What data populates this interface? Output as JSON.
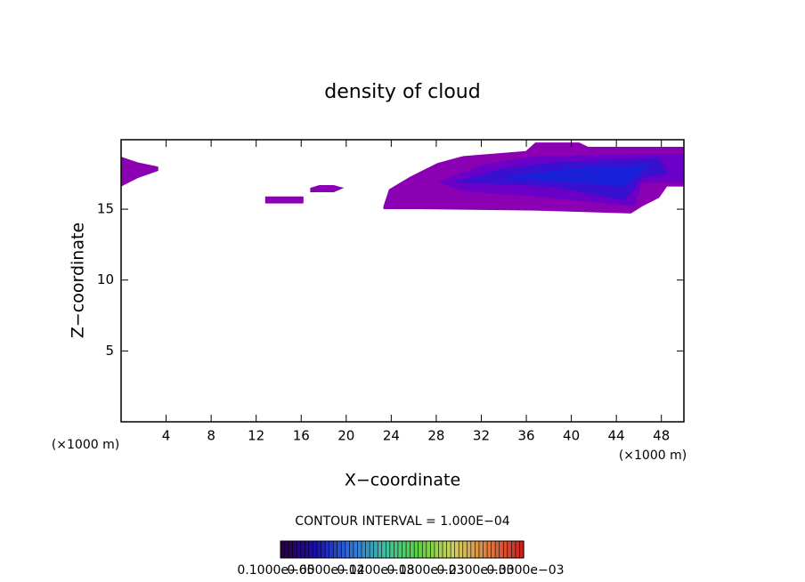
{
  "chart_data": {
    "type": "contourf",
    "title": "density of cloud",
    "x_label": "X−coordinate",
    "y_label": "Z−coordinate",
    "x_unit": "(×1000 m)",
    "y_unit": "(×1000 m)",
    "footer": "CONTOUR INTERVAL = 1.000E−04",
    "xlim": [
      0,
      50
    ],
    "ylim": [
      0,
      19.9
    ],
    "xticks": [
      4,
      8,
      12,
      16,
      20,
      24,
      28,
      32,
      36,
      40,
      44,
      48
    ],
    "yticks": [
      5,
      10,
      15
    ],
    "regions": [
      {
        "level": 1e-06,
        "color": "#8c00b4",
        "x": [
          0,
          1.5,
          3.3,
          3.3,
          1.5,
          0
        ],
        "y": [
          18.7,
          18.3,
          18.0,
          17.7,
          17.2,
          16.6
        ]
      },
      {
        "level": 1e-06,
        "color": "#8c00b4",
        "x": [
          12.8,
          16.2,
          16.2,
          12.8
        ],
        "y": [
          15.9,
          15.9,
          15.4,
          15.4
        ]
      },
      {
        "level": 1e-06,
        "color": "#8c00b4",
        "x": [
          16.8,
          17.6,
          18.9,
          19.8,
          18.9,
          16.8
        ],
        "y": [
          16.5,
          16.7,
          16.7,
          16.5,
          16.2,
          16.2
        ]
      },
      {
        "level": 1e-06,
        "color": "#8c00b4",
        "x": [
          23.3,
          23.8,
          25.7,
          28.1,
          30.4,
          35.96,
          36.8,
          40.7,
          41.5,
          50,
          50,
          48.5,
          47.8,
          46.3,
          45.3,
          36.8,
          26.5,
          23.3
        ],
        "y": [
          15.2,
          16.4,
          17.3,
          18.25,
          18.75,
          19.1,
          19.7,
          19.7,
          19.4,
          19.4,
          16.6,
          16.6,
          15.8,
          15.2,
          14.7,
          14.9,
          15.0,
          15.0
        ]
      },
      {
        "level": 2e-05,
        "color": "#6a00c8",
        "x": [
          28.1,
          32.0,
          36.8,
          50,
          50,
          46.3,
          45.6,
          36.8,
          30.4
        ],
        "y": [
          16.9,
          18.1,
          18.75,
          18.9,
          16.9,
          16.9,
          15.2,
          15.9,
          16.25
        ]
      },
      {
        "level": 4e-05,
        "color": "#3a10d0",
        "x": [
          29.6,
          33.6,
          38.3,
          47.8,
          48.6,
          46.3,
          44.7,
          38.3
        ],
        "y": [
          16.9,
          17.8,
          18.3,
          18.6,
          17.5,
          17.2,
          15.6,
          16.6
        ]
      },
      {
        "level": 6e-05,
        "color": "#1a20d8",
        "x": [
          33.6,
          39.9,
          47.0,
          44.7,
          39.9
        ],
        "y": [
          17.2,
          17.9,
          18.1,
          16.6,
          16.9
        ]
      }
    ],
    "colorbar_colors": [
      "#2a0040",
      "#1a10b0",
      "#3070e0",
      "#40c0a0",
      "#60d040",
      "#d0d060",
      "#e08040",
      "#d02020"
    ],
    "colorbar_labels": [
      "0.1000e−05",
      "0.6000e−04",
      "0.1200e−03",
      "0.1800e−03",
      "0.2300e−03",
      "0.3000e−03"
    ]
  }
}
